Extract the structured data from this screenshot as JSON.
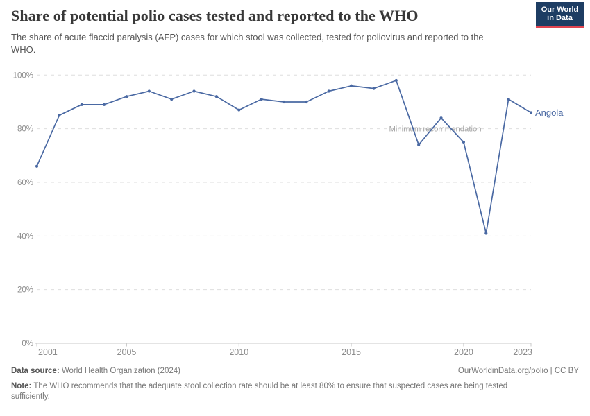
{
  "header": {
    "title": "Share of potential polio cases tested and reported to the WHO",
    "subtitle": "The share of acute flaccid paralysis (AFP) cases for which stool was collected, tested for poliovirus and reported to the WHO.",
    "logo": {
      "line1": "Our World",
      "line2": "in Data",
      "bg_color": "#1d3d63",
      "accent_color": "#e0434f"
    }
  },
  "chart_data": {
    "type": "line",
    "title": "Share of potential polio cases tested and reported to the WHO",
    "x": [
      2001,
      2002,
      2003,
      2004,
      2005,
      2006,
      2007,
      2008,
      2009,
      2010,
      2011,
      2012,
      2013,
      2014,
      2015,
      2016,
      2017,
      2018,
      2019,
      2020,
      2021,
      2022,
      2023
    ],
    "series": [
      {
        "name": "Angola",
        "color": "#4a69a3",
        "values": [
          66,
          85,
          89,
          89,
          92,
          94,
          91,
          94,
          92,
          87,
          91,
          90,
          90,
          94,
          96,
          95,
          98,
          74,
          84,
          75,
          41,
          91,
          86
        ]
      }
    ],
    "x_ticks": [
      2001,
      2005,
      2010,
      2015,
      2020,
      2023
    ],
    "y_ticks": [
      0,
      20,
      40,
      60,
      80,
      100
    ],
    "y_tick_suffix": "%",
    "ylim": [
      0,
      100
    ],
    "xlim": [
      2001,
      2023
    ],
    "grid": "dashed-horizontal",
    "legend_position": "end-of-line",
    "end_label": "Angola",
    "annotation": {
      "text": "Minimum recommendation",
      "y": 80
    },
    "colors": {
      "gridline": "#dedede",
      "axis": "#c9c9c9",
      "tick_label": "#8c8c8c",
      "annotation": "#a5a5a5"
    }
  },
  "footer": {
    "source_label": "Data source:",
    "source_text": " World Health Organization (2024)",
    "license_text": "OurWorldinData.org/polio | CC BY",
    "note_label": "Note:",
    "note_text": " The WHO recommends that the adequate stool collection rate should be at least 80% to ensure that suspected cases are being tested sufficiently."
  }
}
